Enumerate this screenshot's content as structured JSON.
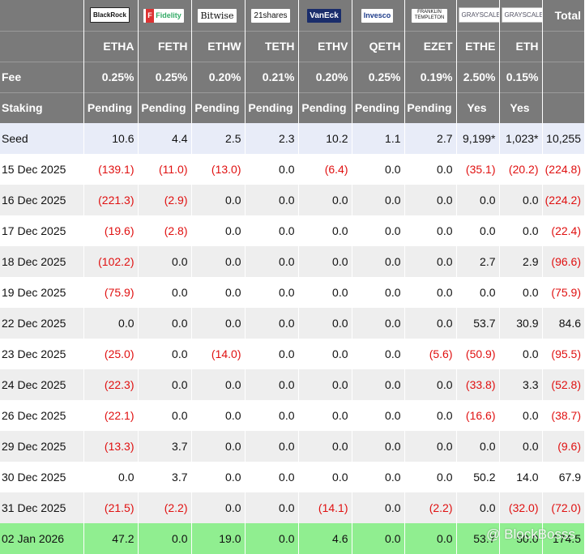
{
  "header": {
    "total_label": "Total",
    "fund_logos": [
      {
        "name": "BlackRock",
        "icon": "blackrock-logo"
      },
      {
        "name": "Fidelity",
        "icon": "fidelity-logo"
      },
      {
        "name": "Bitwise",
        "icon": "bitwise-logo"
      },
      {
        "name": "21shares",
        "icon": "21shares-logo"
      },
      {
        "name": "VanEck",
        "icon": "vaneck-logo"
      },
      {
        "name": "Invesco",
        "icon": "invesco-logo"
      },
      {
        "name": "FRANKLIN TEMPLETON",
        "icon": "franklin-templeton-logo"
      },
      {
        "name": "GRAYSCALE",
        "icon": "grayscale-logo"
      },
      {
        "name": "GRAYSCALE",
        "icon": "grayscale-logo"
      }
    ],
    "tickers": [
      "ETHA",
      "FETH",
      "ETHW",
      "TETH",
      "ETHV",
      "QETH",
      "EZET",
      "ETHE",
      "ETH"
    ],
    "fee_label": "Fee",
    "fees": [
      "0.25%",
      "0.25%",
      "0.20%",
      "0.21%",
      "0.20%",
      "0.25%",
      "0.19%",
      "2.50%",
      "0.15%"
    ],
    "staking_label": "Staking",
    "staking": [
      "Pending",
      "Pending",
      "Pending",
      "Pending",
      "Pending",
      "Pending",
      "Pending",
      "Yes",
      "Yes"
    ]
  },
  "rows": [
    {
      "label": "Seed",
      "values": [
        "10.6",
        "4.4",
        "2.5",
        "2.3",
        "10.2",
        "1.1",
        "2.7",
        "9,199*",
        "1,023*",
        "10,255"
      ]
    },
    {
      "label": "15 Dec 2025",
      "values": [
        "(139.1)",
        "(11.0)",
        "(13.0)",
        "0.0",
        "(6.4)",
        "0.0",
        "0.0",
        "(35.1)",
        "(20.2)",
        "(224.8)"
      ]
    },
    {
      "label": "16 Dec 2025",
      "values": [
        "(221.3)",
        "(2.9)",
        "0.0",
        "0.0",
        "0.0",
        "0.0",
        "0.0",
        "0.0",
        "0.0",
        "(224.2)"
      ]
    },
    {
      "label": "17 Dec 2025",
      "values": [
        "(19.6)",
        "(2.8)",
        "0.0",
        "0.0",
        "0.0",
        "0.0",
        "0.0",
        "0.0",
        "0.0",
        "(22.4)"
      ]
    },
    {
      "label": "18 Dec 2025",
      "values": [
        "(102.2)",
        "0.0",
        "0.0",
        "0.0",
        "0.0",
        "0.0",
        "0.0",
        "2.7",
        "2.9",
        "(96.6)"
      ]
    },
    {
      "label": "19 Dec 2025",
      "values": [
        "(75.9)",
        "0.0",
        "0.0",
        "0.0",
        "0.0",
        "0.0",
        "0.0",
        "0.0",
        "0.0",
        "(75.9)"
      ]
    },
    {
      "label": "22 Dec 2025",
      "values": [
        "0.0",
        "0.0",
        "0.0",
        "0.0",
        "0.0",
        "0.0",
        "0.0",
        "53.7",
        "30.9",
        "84.6"
      ]
    },
    {
      "label": "23 Dec 2025",
      "values": [
        "(25.0)",
        "0.0",
        "(14.0)",
        "0.0",
        "0.0",
        "0.0",
        "(5.6)",
        "(50.9)",
        "0.0",
        "(95.5)"
      ]
    },
    {
      "label": "24 Dec 2025",
      "values": [
        "(22.3)",
        "0.0",
        "0.0",
        "0.0",
        "0.0",
        "0.0",
        "0.0",
        "(33.8)",
        "3.3",
        "(52.8)"
      ]
    },
    {
      "label": "26 Dec 2025",
      "values": [
        "(22.1)",
        "0.0",
        "0.0",
        "0.0",
        "0.0",
        "0.0",
        "0.0",
        "(16.6)",
        "0.0",
        "(38.7)"
      ]
    },
    {
      "label": "29 Dec 2025",
      "values": [
        "(13.3)",
        "3.7",
        "0.0",
        "0.0",
        "0.0",
        "0.0",
        "0.0",
        "0.0",
        "0.0",
        "(9.6)"
      ]
    },
    {
      "label": "30 Dec 2025",
      "values": [
        "0.0",
        "3.7",
        "0.0",
        "0.0",
        "0.0",
        "0.0",
        "0.0",
        "50.2",
        "14.0",
        "67.9"
      ]
    },
    {
      "label": "31 Dec 2025",
      "values": [
        "(21.5)",
        "(2.2)",
        "0.0",
        "0.0",
        "(14.1)",
        "0.0",
        "(2.2)",
        "0.0",
        "(32.0)",
        "(72.0)"
      ]
    },
    {
      "label": "02 Jan 2026",
      "values": [
        "47.2",
        "0.0",
        "19.0",
        "0.0",
        "4.6",
        "0.0",
        "0.0",
        "53.7",
        "50.0",
        "174.5"
      ]
    }
  ],
  "watermark": "@ BlockBosss",
  "colors": {
    "header_bg": "#7a7a7a",
    "negative": "#e01010",
    "seed_bg": "#e8ecf8",
    "alt_bg": "#eeeeee",
    "last_row_bg": "#90ee90"
  }
}
